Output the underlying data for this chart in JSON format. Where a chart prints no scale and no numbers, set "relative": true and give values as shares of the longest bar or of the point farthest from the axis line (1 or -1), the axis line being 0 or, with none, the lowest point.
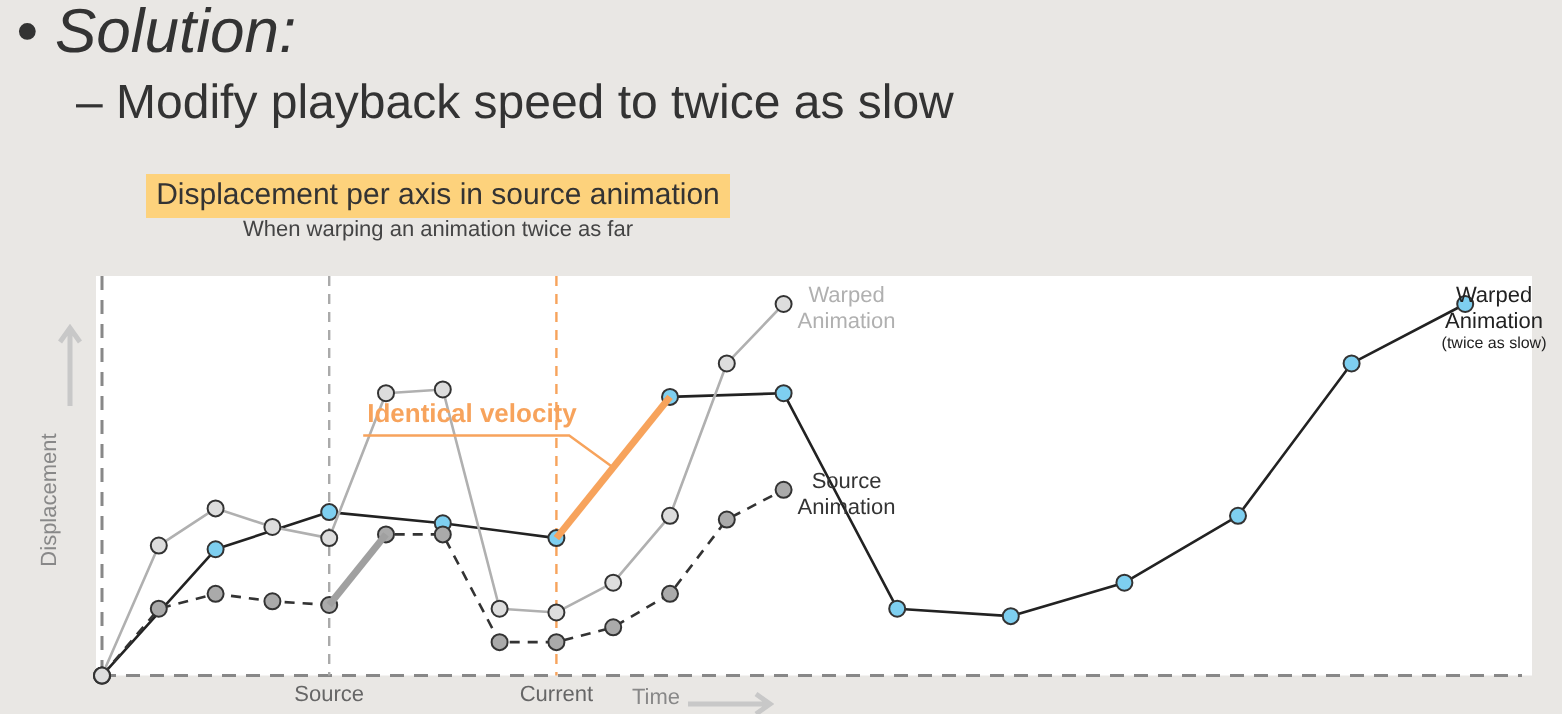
{
  "chart_data": {
    "type": "line",
    "title": "Displacement per axis in source animation",
    "subtitle": "When warping an animation twice as far",
    "xlabel": "Time",
    "ylabel": "Displacement",
    "relative": true,
    "grid": false,
    "marker": "circle",
    "categories": [
      null,
      null,
      null,
      null,
      "Source",
      null,
      null,
      null,
      "Current",
      null,
      null,
      null,
      null,
      null,
      null,
      null,
      null,
      null,
      null,
      null,
      null,
      null,
      null,
      null,
      null,
      null
    ],
    "series": [
      {
        "name": "Warped Animation",
        "color": "#b0b0b0",
        "values": [
          0,
          0.35,
          0.45,
          0.4,
          0.37,
          0.76,
          0.77,
          0.18,
          0.17,
          0.25,
          0.43,
          0.84,
          1,
          null,
          null,
          null,
          null,
          null,
          null,
          null,
          null,
          null,
          null,
          null,
          null,
          null
        ]
      },
      {
        "name": "Source Animation",
        "color": "#333333",
        "line_style": "dashed",
        "values": [
          0,
          0.18,
          0.22,
          0.2,
          0.19,
          0.38,
          0.38,
          0.09,
          0.09,
          0.13,
          0.22,
          0.42,
          0.5,
          null,
          null,
          null,
          null,
          null,
          null,
          null,
          null,
          null,
          null,
          null,
          null,
          null
        ]
      },
      {
        "color": "#a0a0a0",
        "marker": "none",
        "values": [
          null,
          null,
          null,
          null,
          0.19,
          0.38,
          null,
          null,
          null,
          null,
          null,
          null,
          null,
          null,
          null,
          null,
          null,
          null,
          null,
          null,
          null,
          null,
          null,
          null,
          null,
          null
        ]
      },
      {
        "name": "Warped Animation (twice as slow)",
        "color": "#222222",
        "values": [
          0,
          null,
          0.34,
          null,
          0.44,
          null,
          0.41,
          null,
          0.37,
          null,
          0.75,
          null,
          0.76,
          null,
          0.18,
          null,
          0.16,
          null,
          0.25,
          null,
          0.43,
          null,
          0.84,
          null,
          1,
          null
        ]
      },
      {
        "color": "#f7a35c",
        "marker": "none",
        "values": [
          null,
          null,
          null,
          null,
          null,
          null,
          null,
          null,
          0.37,
          null,
          0.75,
          null,
          null,
          null,
          null,
          null,
          null,
          null,
          null,
          null,
          null,
          null,
          null,
          null,
          null,
          null
        ]
      }
    ],
    "ref_lines": [
      {
        "axis": "x",
        "value": "Source",
        "color": "#aaaaaa",
        "line_style": "dashed"
      },
      {
        "axis": "x",
        "value": "Current",
        "color": "#f7a35c",
        "line_style": "dashed"
      }
    ],
    "annotations": [
      "• Solution:",
      "– Modify playback speed to twice as slow",
      "Identical velocity"
    ]
  }
}
